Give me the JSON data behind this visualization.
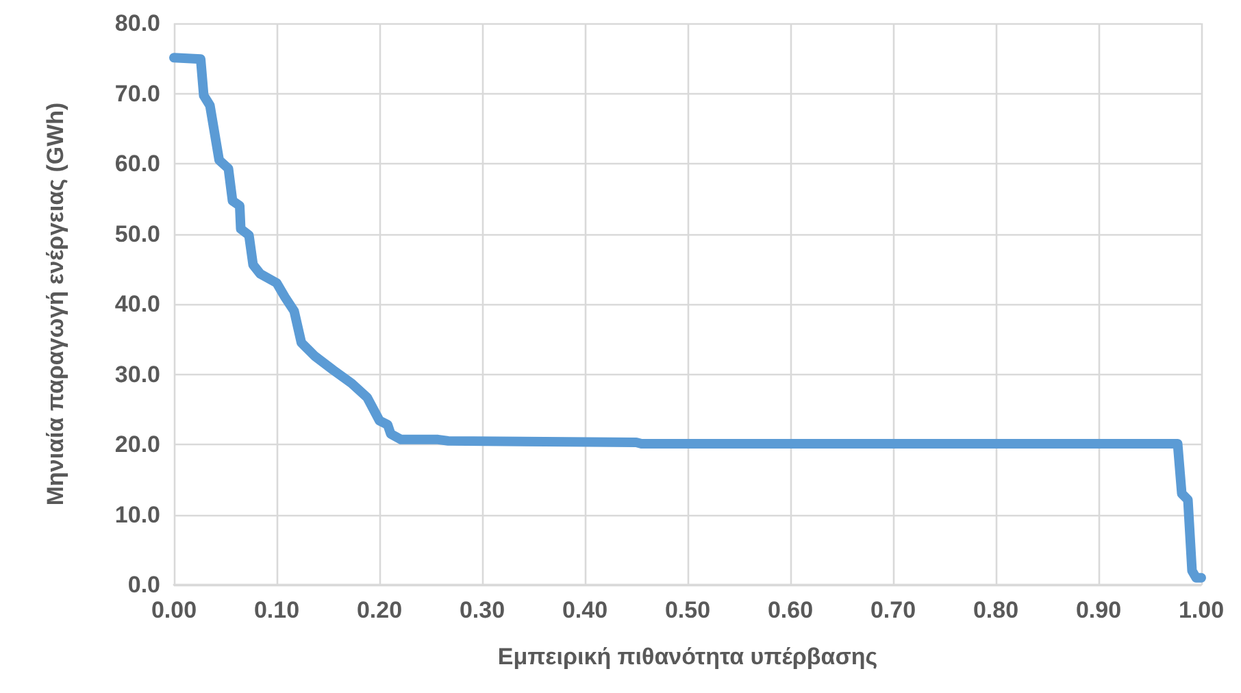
{
  "chart_data": {
    "type": "line",
    "xlabel": "Εμπειρική πιθανότητα υπέρβασης",
    "ylabel": "Μηνιαία παραγωγή ενέργειας (GWh)",
    "series": [
      {
        "color": "#5b9bd5",
        "x": [
          0,
          0.026,
          0.029,
          0.035,
          0.044,
          0.053,
          0.057,
          0.064,
          0.065,
          0.073,
          0.077,
          0.084,
          0.1,
          0.108,
          0.117,
          0.124,
          0.137,
          0.155,
          0.173,
          0.188,
          0.2,
          0.208,
          0.211,
          0.221,
          0.257,
          0.267,
          0.45,
          0.455,
          0.977,
          0.981,
          0.987,
          0.991,
          0.995,
          1.0
        ],
        "values": [
          75.1,
          74.9,
          69.7,
          68.3,
          60.5,
          59.3,
          54.7,
          54,
          50.7,
          49.8,
          45.6,
          44.3,
          43,
          41,
          39,
          34.5,
          32.6,
          30.6,
          28.7,
          26.7,
          23.4,
          22.8,
          21.5,
          20.7,
          20.7,
          20.5,
          20.3,
          20.1,
          20.1,
          13,
          12.1,
          2,
          1.0,
          1.0
        ]
      }
    ],
    "xlim": [
      0,
      1
    ],
    "xticks": [
      {
        "value": 0,
        "label": "0.00"
      },
      {
        "value": 0.1,
        "label": "0.10"
      },
      {
        "value": 0.2,
        "label": "0.20"
      },
      {
        "value": 0.3,
        "label": "0.30"
      },
      {
        "value": 0.4,
        "label": "0.40"
      },
      {
        "value": 0.5,
        "label": "0.50"
      },
      {
        "value": 0.6,
        "label": "0.60"
      },
      {
        "value": 0.7,
        "label": "0.70"
      },
      {
        "value": 0.8,
        "label": "0.80"
      },
      {
        "value": 0.9,
        "label": "0.90"
      },
      {
        "value": 1,
        "label": "1.00"
      }
    ],
    "ylim": [
      0,
      80
    ],
    "yticks": [
      {
        "value": 0,
        "label": "0.0"
      },
      {
        "value": 10,
        "label": "10.0"
      },
      {
        "value": 20,
        "label": "20.0"
      },
      {
        "value": 30,
        "label": "30.0"
      },
      {
        "value": 40,
        "label": "40.0"
      },
      {
        "value": 50,
        "label": "50.0"
      },
      {
        "value": 60,
        "label": "60.0"
      },
      {
        "value": 70,
        "label": "70.0"
      },
      {
        "value": 80,
        "label": "80.0"
      }
    ],
    "grid": true,
    "line_style": "solid"
  }
}
